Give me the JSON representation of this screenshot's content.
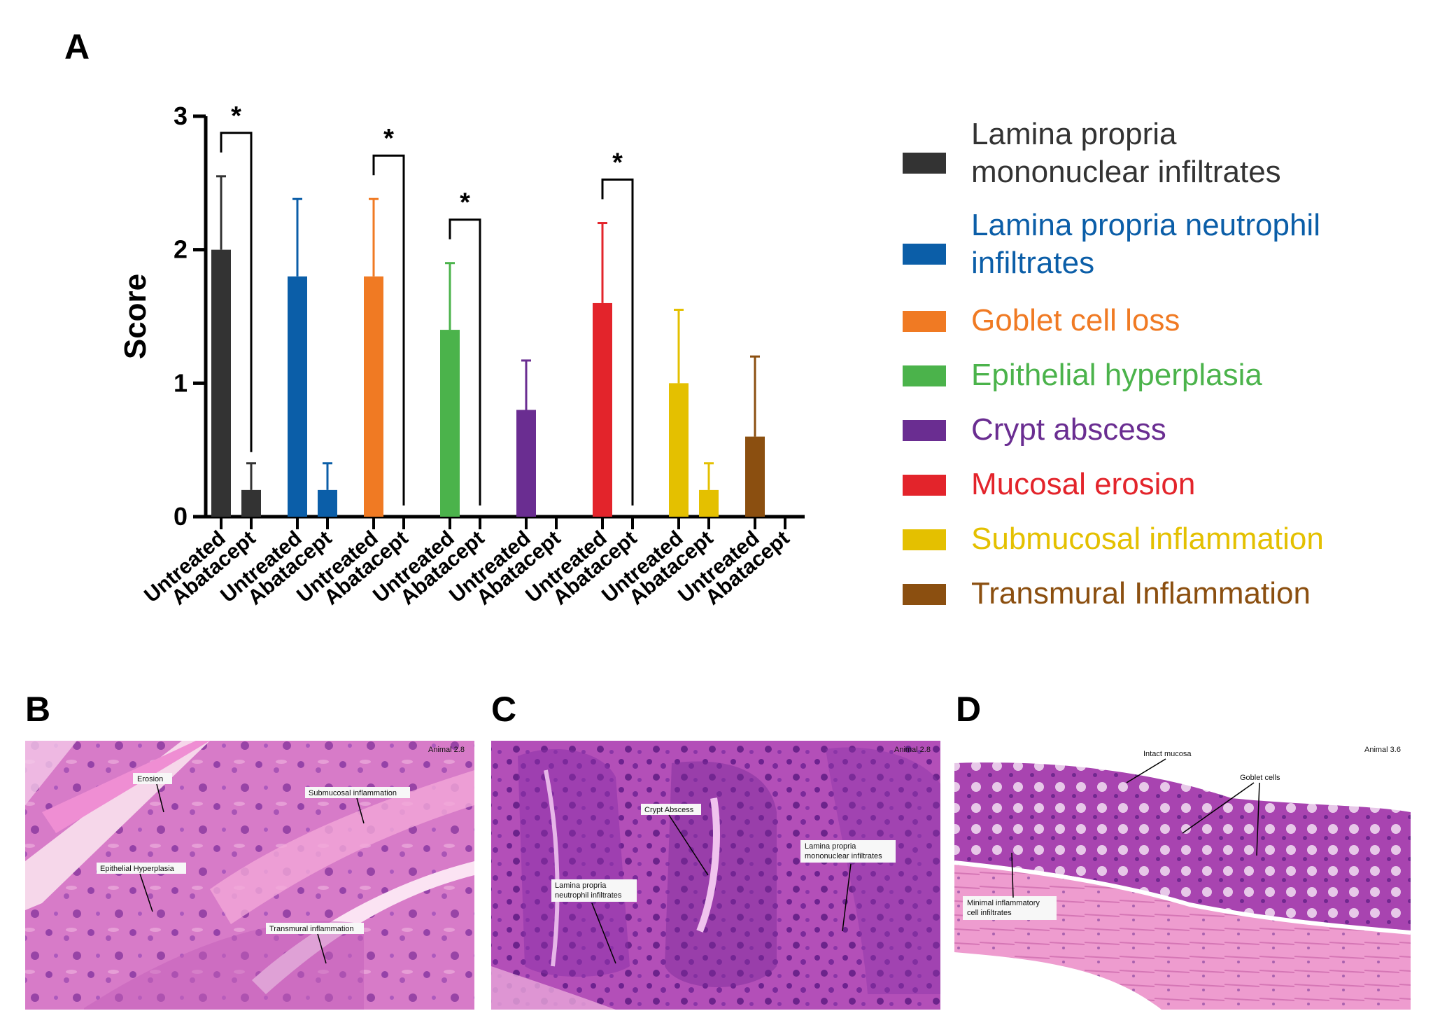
{
  "panels": {
    "a": "A",
    "b": "B",
    "c": "C",
    "d": "D"
  },
  "chart_data": {
    "type": "bar",
    "ylabel": "Score",
    "xlabel": "",
    "ylim": [
      0,
      3
    ],
    "yticks": [
      "0",
      "1",
      "2",
      "3"
    ],
    "categories": [
      "Untreated",
      "Abatacept"
    ],
    "series": [
      {
        "name": "Lamina propria mononuclear infiltrates",
        "color": "#333333",
        "values": [
          2.0,
          0.2
        ],
        "err": [
          0.55,
          0.2
        ],
        "sig": true
      },
      {
        "name": "Lamina propria neutrophil infiltrates",
        "color": "#0b5ea8",
        "values": [
          1.8,
          0.2
        ],
        "err": [
          0.58,
          0.2
        ],
        "sig": false
      },
      {
        "name": "Goblet cell loss",
        "color": "#f07a23",
        "values": [
          1.8,
          0.0
        ],
        "err": [
          0.58,
          0.0
        ],
        "sig": true
      },
      {
        "name": "Epithelial hyperplasia",
        "color": "#4bb34b",
        "values": [
          1.4,
          0.0
        ],
        "err": [
          0.5,
          0.0
        ],
        "sig": true
      },
      {
        "name": "Crypt abscess",
        "color": "#6a2d91",
        "values": [
          0.8,
          0.0
        ],
        "err": [
          0.37,
          0.0
        ],
        "sig": false
      },
      {
        "name": "Mucosal erosion",
        "color": "#e3242b",
        "values": [
          1.6,
          0.0
        ],
        "err": [
          0.6,
          0.0
        ],
        "sig": true
      },
      {
        "name": "Submucosal inflammation",
        "color": "#e4c000",
        "values": [
          1.0,
          0.2
        ],
        "err": [
          0.55,
          0.2
        ],
        "sig": false
      },
      {
        "name": "Transmural Inflammation",
        "color": "#8b4f10",
        "values": [
          0.6,
          0.0
        ],
        "err": [
          0.6,
          0.0
        ],
        "sig": false
      }
    ],
    "significance_marker": "*",
    "legend_position": "right"
  },
  "micrographs": {
    "b": {
      "animal": "Animal 2.8",
      "labels": [
        "Erosion",
        "Submucosal inflammation",
        "Epithelial Hyperplasia",
        "Transmural inflammation"
      ]
    },
    "c": {
      "animal": "Animal 2.8",
      "labels": [
        "Crypt Abscess",
        "Lamina propria",
        "neutrophil infiltrates",
        "Lamina propria",
        "mononuclear infiltrates"
      ]
    },
    "d": {
      "animal": "Animal 3.6",
      "labels": [
        "Intact mucosa",
        "Goblet cells",
        "Minimal inflammatory",
        "cell infiltrates"
      ]
    }
  }
}
